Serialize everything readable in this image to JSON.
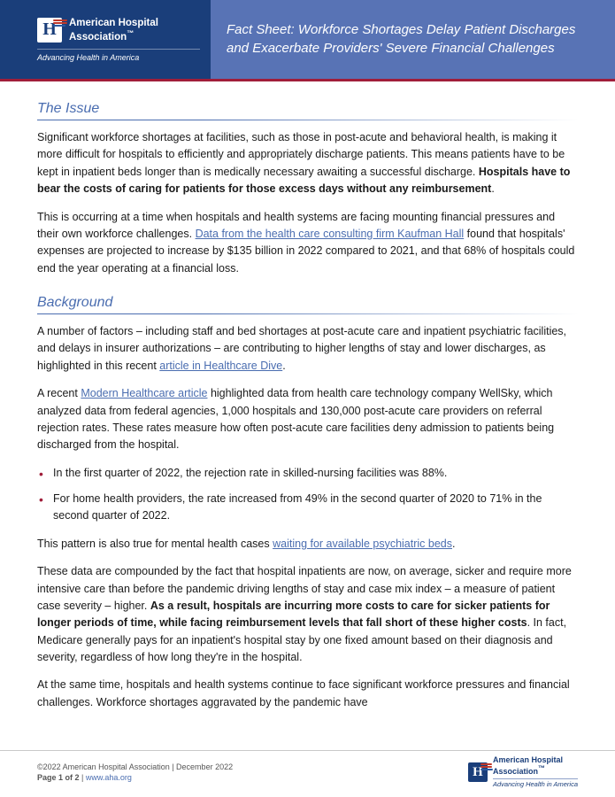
{
  "header": {
    "org_name_line1": "American Hospital",
    "org_name_line2": "Association",
    "tagline": "Advancing Health in America",
    "title": "Fact Sheet: Workforce Shortages Delay Patient Discharges and Exacerbate Providers' Severe Financial Challenges"
  },
  "sections": {
    "issue": {
      "heading": "The Issue",
      "p1_a": "Significant workforce shortages at facilities, such as those in post-acute and behavioral health, is making it more difficult for hospitals to efficiently and appropriately discharge patients. This means patients have to be kept in inpatient beds longer than is medically necessary awaiting a successful discharge. ",
      "p1_b": "Hospitals have to bear the costs of caring for patients for those excess days without any reimbursement",
      "p1_c": ".",
      "p2_a": "This is occurring at a time when hospitals and health systems are facing mounting financial pressures and their own workforce challenges. ",
      "p2_link": "Data from the health care consulting firm Kaufman Hall",
      "p2_b": " found that hospitals' expenses are projected to increase by $135 billion in 2022 compared to 2021, and that 68% of hospitals could end the year operating at a financial loss."
    },
    "background": {
      "heading": "Background",
      "p1_a": "A number of factors – including staff and bed shortages at post-acute care and inpatient psychiatric facilities, and delays in insurer authorizations – are contributing to higher lengths of stay and lower discharges, as highlighted in this recent ",
      "p1_link": "article in Healthcare Dive",
      "p1_b": ".",
      "p2_a": "A recent ",
      "p2_link": "Modern Healthcare article",
      "p2_b": " highlighted data from health care technology company WellSky, which analyzed data from federal agencies, 1,000 hospitals and 130,000 post-acute care providers on referral rejection rates. These rates measure how often post-acute care facilities deny admission to patients being discharged from the hospital.",
      "bullets": [
        "In the first quarter of 2022, the rejection rate in skilled-nursing facilities was 88%.",
        "For home health providers, the rate increased from 49% in the second quarter of 2020 to 71% in the second quarter of 2022."
      ],
      "p3_a": "This pattern is also true for mental health cases ",
      "p3_link": "waiting for available psychiatric beds",
      "p3_b": ".",
      "p4_a": "These data are compounded by the fact that hospital inpatients are now, on average, sicker and require more intensive care than before the pandemic driving lengths of stay and case mix index – a measure of patient case severity – higher. ",
      "p4_b": "As a result, hospitals are incurring more costs to care for sicker patients for longer periods of time, while facing reimbursement levels that fall short of these higher costs",
      "p4_c": ". In fact, Medicare generally pays for an inpatient's hospital stay by one fixed amount based on their diagnosis and severity, regardless of how long they're in the hospital.",
      "p5": "At the same time, hospitals and health systems continue to face significant workforce pressures and financial challenges. Workforce shortages aggravated by the pandemic have"
    }
  },
  "footer": {
    "copyright": "©2022 American Hospital Association  |  December 2022",
    "page_label_a": "Page ",
    "page_num": "1",
    "page_of": " of ",
    "page_total": "2",
    "sep": "  |  ",
    "url": "www.aha.org",
    "org_name_line1": "American Hospital",
    "org_name_line2": "Association",
    "tagline": "Advancing Health in America"
  },
  "colors": {
    "header_left_bg": "#1a3e7a",
    "header_right_bg": "#5873b5",
    "accent_rule": "#a01e3a",
    "link": "#4a6db0",
    "heading": "#4a6db0"
  }
}
